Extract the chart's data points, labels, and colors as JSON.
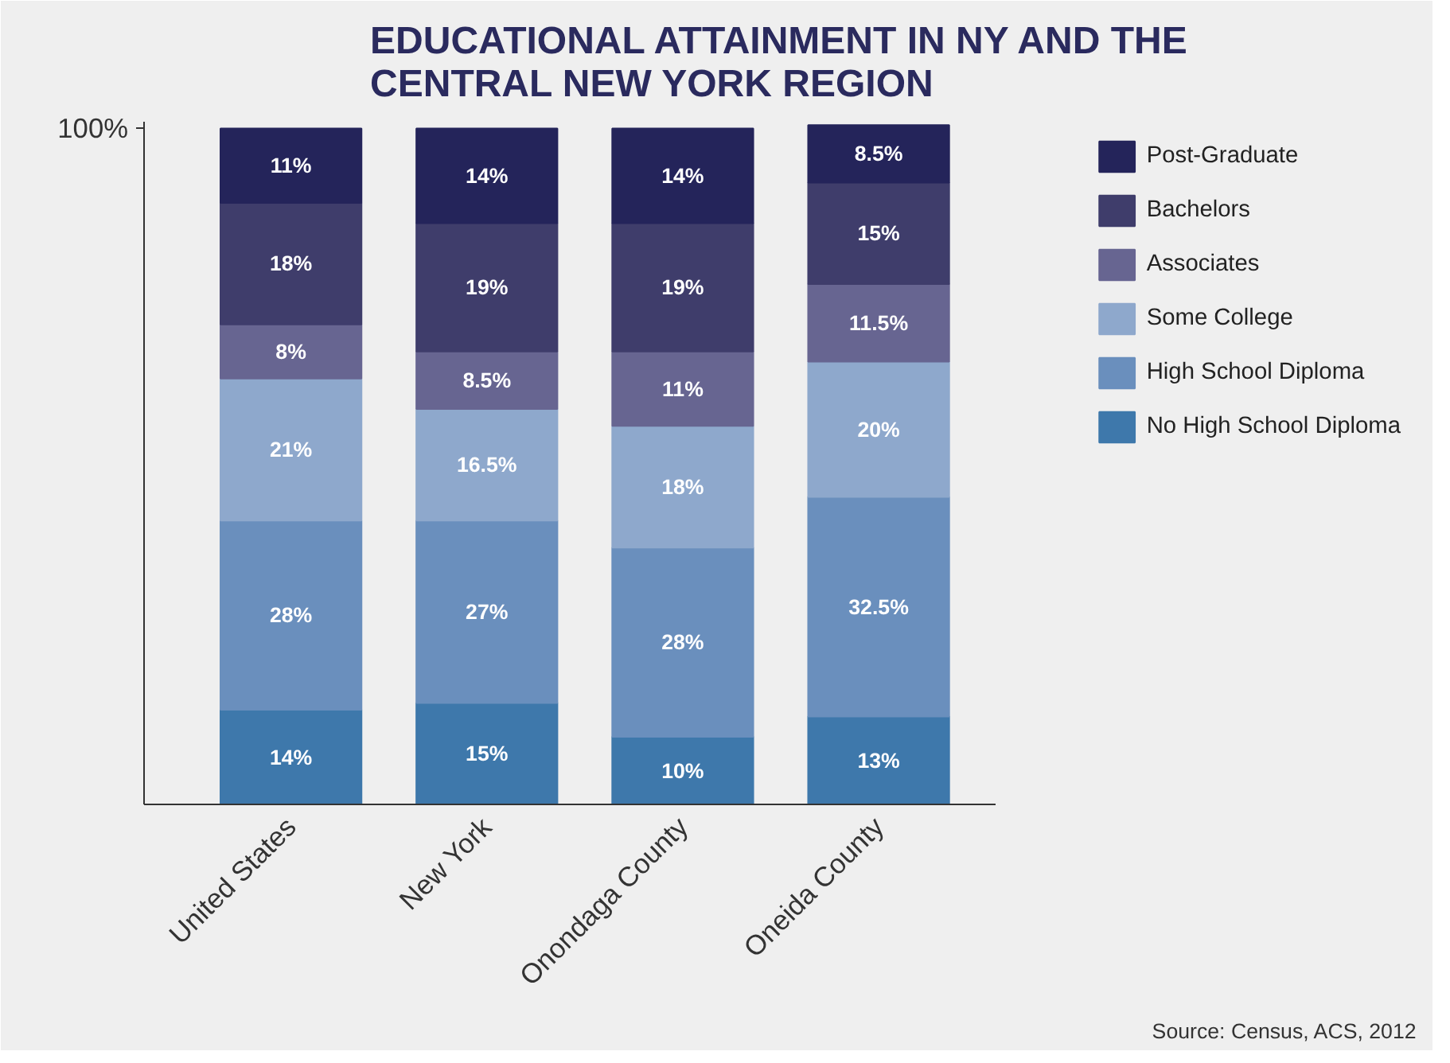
{
  "chart_data": {
    "type": "bar",
    "stacked": true,
    "title": "EDUCATIONAL ATTAINMENT IN NY AND THE\nCENTRAL NEW YORK REGION",
    "categories": [
      "United States",
      "New York",
      "Onondaga County",
      "Oneida County"
    ],
    "ylim": [
      0,
      101
    ],
    "yticks": [
      {
        "value": 100,
        "label": "100%"
      }
    ],
    "grid": false,
    "legend": "right",
    "series": [
      {
        "name": "No High School Diploma",
        "color": "#3e78ab",
        "values": [
          14,
          15,
          10,
          13
        ],
        "value_labels": [
          "14%",
          "15%",
          "10%",
          "13%"
        ]
      },
      {
        "name": "High School Diploma",
        "color": "#6a8fbd",
        "values": [
          28,
          27,
          28,
          32.5
        ],
        "value_labels": [
          "28%",
          "27%",
          "28%",
          "32.5%"
        ]
      },
      {
        "name": "Some College",
        "color": "#8ea8cc",
        "values": [
          21,
          16.5,
          18,
          20
        ],
        "value_labels": [
          "21%",
          "16.5%",
          "18%",
          "20%"
        ]
      },
      {
        "name": "Associates",
        "color": "#676591",
        "values": [
          8,
          8.5,
          11,
          11.5
        ],
        "value_labels": [
          "8%",
          "8.5%",
          "11%",
          "11.5%"
        ]
      },
      {
        "name": "Bachelors",
        "color": "#3f3d6b",
        "values": [
          18,
          19,
          19,
          15
        ],
        "value_labels": [
          "18%",
          "19%",
          "19%",
          "15%"
        ]
      },
      {
        "name": "Post-Graduate",
        "color": "#24245a",
        "values": [
          11,
          14,
          14,
          8.5
        ],
        "value_labels": [
          "11%",
          "14%",
          "14%",
          "8.5%"
        ]
      }
    ],
    "annotations": [
      "Source: Census, ACS, 2012"
    ]
  }
}
